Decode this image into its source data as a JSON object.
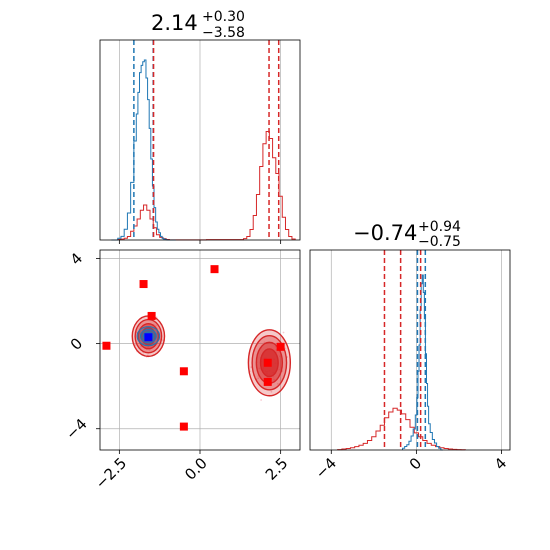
{
  "chart_data": {
    "type": "corner",
    "parameters": [
      {
        "title": "2.14",
        "title_plus": "+0.30",
        "title_minus": "−3.58",
        "range": [
          -3.1,
          3.1
        ],
        "ticks": [
          -2.5,
          0.0,
          2.5
        ],
        "tick_labels": [
          "−2.5",
          "0.0",
          "2.5"
        ],
        "blue_hist": {
          "bins": [
            -2.7,
            -2.6,
            -2.5,
            -2.4,
            -2.3,
            -2.2,
            -2.1,
            -2.0,
            -1.95,
            -1.9,
            -1.85,
            -1.8,
            -1.75,
            -1.7,
            -1.65,
            -1.6,
            -1.55,
            -1.5,
            -1.45,
            -1.4,
            -1.35,
            -1.3,
            -1.25,
            -1.2,
            -1.15,
            -1.1,
            -1.05,
            -1.0,
            -0.9,
            -0.8
          ],
          "values": [
            0,
            0,
            0.01,
            0.02,
            0.06,
            0.15,
            0.32,
            0.55,
            0.7,
            0.82,
            0.93,
            0.97,
            0.99,
            1.0,
            0.9,
            0.78,
            0.62,
            0.45,
            0.3,
            0.18,
            0.1,
            0.06,
            0.04,
            0.02,
            0.01,
            0.005,
            0.002,
            0,
            0,
            0
          ]
        },
        "red_hist": {
          "bins": [
            -2.5,
            -2.4,
            -2.3,
            -2.2,
            -2.1,
            -2.0,
            -1.9,
            -1.8,
            -1.7,
            -1.6,
            -1.5,
            -1.4,
            -1.3,
            -1.2,
            -1.1,
            -1.0,
            -0.9,
            1.3,
            1.4,
            1.5,
            1.6,
            1.7,
            1.8,
            1.9,
            2.0,
            2.1,
            2.2,
            2.3,
            2.4,
            2.5,
            2.6,
            2.7,
            2.8,
            2.9
          ],
          "values": [
            0.003,
            0.005,
            0.01,
            0.02,
            0.05,
            0.08,
            0.12,
            0.17,
            0.2,
            0.17,
            0.12,
            0.07,
            0.03,
            0.015,
            0.008,
            0.003,
            0.001,
            0.002,
            0.008,
            0.02,
            0.06,
            0.14,
            0.26,
            0.42,
            0.55,
            0.62,
            0.58,
            0.47,
            0.38,
            0.25,
            0.13,
            0.06,
            0.02,
            0.006
          ]
        },
        "blue_quantiles": [
          -2.05,
          -1.45
        ],
        "red_quantiles": [
          -1.44,
          2.14,
          2.44
        ]
      },
      {
        "title": "−0.74",
        "title_plus": "+0.94",
        "title_minus": "−0.75",
        "range": [
          -5.0,
          4.4
        ],
        "ticks": [
          -4,
          0,
          4
        ],
        "tick_labels": [
          "−4",
          "0",
          "4"
        ],
        "blue_hist": {
          "bins": [
            -0.6,
            -0.5,
            -0.4,
            -0.3,
            -0.2,
            -0.1,
            0.0,
            0.05,
            0.1,
            0.15,
            0.2,
            0.25,
            0.3,
            0.35,
            0.4,
            0.45,
            0.5,
            0.55,
            0.6,
            0.7,
            0.8,
            0.9,
            1.0,
            1.1,
            1.2
          ],
          "values": [
            0.01,
            0.02,
            0.03,
            0.05,
            0.08,
            0.12,
            0.2,
            0.3,
            0.45,
            0.6,
            0.8,
            0.95,
            1.0,
            0.9,
            0.75,
            0.55,
            0.38,
            0.25,
            0.15,
            0.1,
            0.06,
            0.04,
            0.02,
            0.01,
            0
          ]
        },
        "red_hist": {
          "bins": [
            -3.6,
            -3.4,
            -3.2,
            -3.0,
            -2.8,
            -2.6,
            -2.4,
            -2.2,
            -2.0,
            -1.8,
            -1.6,
            -1.4,
            -1.2,
            -1.0,
            -0.8,
            -0.6,
            -0.4,
            -0.2,
            0.0,
            0.2,
            0.4,
            0.6,
            0.8,
            1.0,
            1.2,
            1.4,
            1.6,
            1.8,
            2.0,
            2.2
          ],
          "values": [
            0.002,
            0.005,
            0.008,
            0.012,
            0.018,
            0.025,
            0.035,
            0.05,
            0.07,
            0.1,
            0.13,
            0.17,
            0.2,
            0.22,
            0.21,
            0.19,
            0.16,
            0.12,
            0.09,
            0.07,
            0.05,
            0.035,
            0.025,
            0.018,
            0.012,
            0.008,
            0.005,
            0.003,
            0.002,
            0.001
          ]
        },
        "blue_quantiles": [
          0.05,
          0.42
        ],
        "red_quantiles": [
          -1.5,
          -0.74,
          0.2
        ]
      }
    ],
    "scatter": {
      "red_squares": [
        {
          "x": -1.75,
          "y": 2.8
        },
        {
          "x": 0.45,
          "y": 3.5
        },
        {
          "x": -1.5,
          "y": 1.3
        },
        {
          "x": -2.9,
          "y": -0.1
        },
        {
          "x": -0.5,
          "y": -1.3
        },
        {
          "x": -0.5,
          "y": -3.9
        },
        {
          "x": 2.1,
          "y": -0.9
        },
        {
          "x": 2.1,
          "y": -1.8
        },
        {
          "x": 2.5,
          "y": -0.15
        }
      ],
      "blue_square": {
        "x": -1.6,
        "y": 0.3
      },
      "red_contour_clusters": [
        {
          "cx": -1.6,
          "cy": 0.35,
          "rx": 0.5,
          "ry": 0.95,
          "color_fill": "#d62728"
        },
        {
          "cx": 2.15,
          "cy": -0.9,
          "rx": 0.65,
          "ry": 1.55,
          "color_fill": "#d62728"
        }
      ],
      "blue_contour_cluster": {
        "cx": -1.6,
        "cy": 0.35,
        "rx": 0.35,
        "ry": 0.45
      },
      "crosshair": {
        "x": 0.0,
        "y": 0.0
      }
    },
    "colors": {
      "blue": "#1f77b4",
      "red": "#d62728",
      "grid": "#b0b0b0"
    },
    "grid": true
  }
}
